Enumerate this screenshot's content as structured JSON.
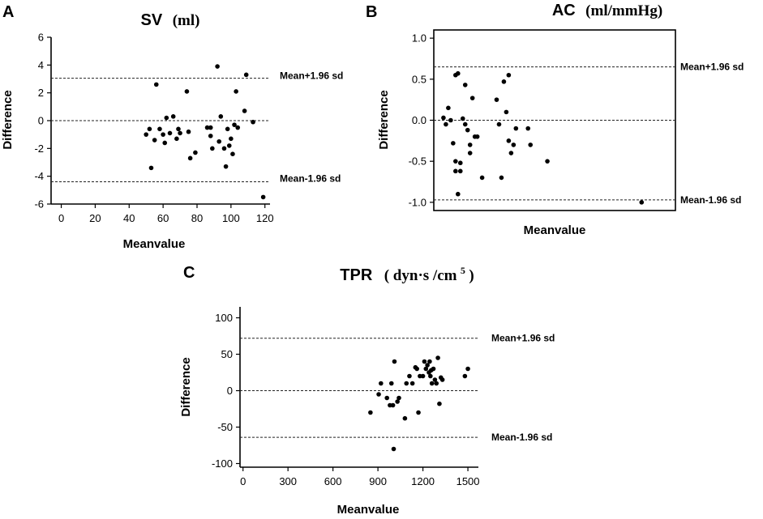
{
  "chart_data": [
    {
      "panel": "A",
      "type": "scatter",
      "title": "SV",
      "title_unit": "(ml)",
      "xlabel": "Meanvalue",
      "ylabel": "Difference",
      "xlim": [
        -6,
        123
      ],
      "ylim": [
        -6,
        6
      ],
      "xticks": [
        0,
        20,
        40,
        60,
        80,
        100,
        120
      ],
      "xtick_labels": [
        "0",
        "20",
        "40",
        "60",
        "80",
        "100",
        "120"
      ],
      "yticks": [
        -6,
        -4,
        -2,
        0,
        2,
        4,
        6
      ],
      "ytick_labels": [
        "-6",
        "-4",
        "-2",
        "0",
        "2",
        "4",
        "6"
      ],
      "frame": "open",
      "ref_lines": [
        {
          "label": "Mean+1.96 sd",
          "y": 3.05
        },
        {
          "label": "",
          "y": 0
        },
        {
          "label": "Mean-1.96 sd",
          "y": -4.4
        }
      ],
      "points": [
        [
          50,
          -1.0
        ],
        [
          52,
          -0.6
        ],
        [
          53,
          -3.4
        ],
        [
          55,
          -1.4
        ],
        [
          56,
          2.6
        ],
        [
          58,
          -0.6
        ],
        [
          60,
          -1.0
        ],
        [
          61,
          -1.6
        ],
        [
          62,
          0.2
        ],
        [
          64,
          -0.9
        ],
        [
          66,
          0.3
        ],
        [
          68,
          -1.3
        ],
        [
          69,
          -0.6
        ],
        [
          70,
          -0.9
        ],
        [
          74,
          2.1
        ],
        [
          75,
          -0.8
        ],
        [
          76,
          -2.7
        ],
        [
          79,
          -2.3
        ],
        [
          86,
          -0.5
        ],
        [
          88,
          -1.1
        ],
        [
          88,
          -0.5
        ],
        [
          89,
          -2.0
        ],
        [
          92,
          3.9
        ],
        [
          93,
          -1.5
        ],
        [
          94,
          0.3
        ],
        [
          96,
          -2.0
        ],
        [
          97,
          -3.3
        ],
        [
          98,
          -0.6
        ],
        [
          99,
          -1.8
        ],
        [
          100,
          -1.3
        ],
        [
          101,
          -2.4
        ],
        [
          102,
          -0.3
        ],
        [
          103,
          2.1
        ],
        [
          104,
          -0.5
        ],
        [
          108,
          0.7
        ],
        [
          109,
          3.3
        ],
        [
          113,
          -0.1
        ],
        [
          119,
          -5.5
        ]
      ]
    },
    {
      "panel": "B",
      "type": "scatter",
      "title": "AC",
      "title_unit": "(ml/mmHg)",
      "xlabel": "Meanvalue",
      "ylabel": "Difference",
      "xlim": [
        0,
        100
      ],
      "ylim": [
        -1.1,
        1.1
      ],
      "xticks": [],
      "xtick_labels": [],
      "yticks": [
        -1.0,
        -0.5,
        0.0,
        0.5,
        1.0
      ],
      "ytick_labels": [
        "-1.0",
        "-0.5",
        "0.0",
        "0.5",
        "1.0"
      ],
      "frame": "box",
      "ref_lines": [
        {
          "label": "Mean+1.96 sd",
          "y": 0.65
        },
        {
          "label": "",
          "y": 0
        },
        {
          "label": "Mean-1.96 sd",
          "y": -0.97
        }
      ],
      "points": [
        [
          4,
          0.03
        ],
        [
          5,
          -0.05
        ],
        [
          6,
          0.15
        ],
        [
          7,
          0.0
        ],
        [
          8,
          -0.28
        ],
        [
          9,
          0.55
        ],
        [
          9,
          -0.62
        ],
        [
          9,
          -0.5
        ],
        [
          10,
          0.57
        ],
        [
          10,
          -0.9
        ],
        [
          11,
          -0.62
        ],
        [
          11,
          -0.52
        ],
        [
          12,
          0.02
        ],
        [
          13,
          0.43
        ],
        [
          13,
          -0.05
        ],
        [
          14,
          -0.12
        ],
        [
          15,
          -0.4
        ],
        [
          15,
          -0.3
        ],
        [
          16,
          0.27
        ],
        [
          17,
          -0.2
        ],
        [
          18,
          -0.2
        ],
        [
          20,
          -0.7
        ],
        [
          26,
          0.25
        ],
        [
          27,
          -0.05
        ],
        [
          28,
          -0.7
        ],
        [
          29,
          0.47
        ],
        [
          30,
          0.1
        ],
        [
          31,
          -0.25
        ],
        [
          31,
          0.55
        ],
        [
          32,
          -0.4
        ],
        [
          33,
          -0.3
        ],
        [
          34,
          -0.1
        ],
        [
          39,
          -0.1
        ],
        [
          40,
          -0.3
        ],
        [
          47,
          -0.5
        ],
        [
          86,
          -1.0
        ]
      ]
    },
    {
      "panel": "C",
      "type": "scatter",
      "title": "TPR",
      "title_unit": "( dyn·s /cm",
      "title_sup": "5",
      "title_close": ")",
      "xlabel": "Meanvalue",
      "ylabel": "Difference",
      "xlim": [
        -20,
        1570
      ],
      "ylim": [
        -105,
        115
      ],
      "xticks": [
        0,
        300,
        600,
        900,
        1200,
        1500
      ],
      "xtick_labels": [
        "0",
        "300",
        "600",
        "900",
        "1200",
        "1500"
      ],
      "yticks": [
        -100,
        -50,
        0,
        50,
        100
      ],
      "ytick_labels": [
        "-100",
        "-50",
        "0",
        "50",
        "100"
      ],
      "frame": "open",
      "ref_lines": [
        {
          "label": "Mean+1.96 sd",
          "y": 72
        },
        {
          "label": "",
          "y": 0
        },
        {
          "label": "Mean-1.96 sd",
          "y": -64
        }
      ],
      "points": [
        [
          850,
          -30
        ],
        [
          905,
          -5
        ],
        [
          920,
          10
        ],
        [
          960,
          -10
        ],
        [
          980,
          -20
        ],
        [
          990,
          10
        ],
        [
          1000,
          -20
        ],
        [
          1005,
          -80
        ],
        [
          1010,
          40
        ],
        [
          1030,
          -15
        ],
        [
          1040,
          -10
        ],
        [
          1080,
          -38
        ],
        [
          1090,
          10
        ],
        [
          1110,
          20
        ],
        [
          1130,
          10
        ],
        [
          1150,
          32
        ],
        [
          1160,
          30
        ],
        [
          1170,
          -30
        ],
        [
          1180,
          20
        ],
        [
          1200,
          20
        ],
        [
          1210,
          40
        ],
        [
          1220,
          30
        ],
        [
          1230,
          35
        ],
        [
          1240,
          25
        ],
        [
          1245,
          40
        ],
        [
          1250,
          20
        ],
        [
          1255,
          28
        ],
        [
          1260,
          10
        ],
        [
          1270,
          30
        ],
        [
          1280,
          15
        ],
        [
          1290,
          10
        ],
        [
          1300,
          45
        ],
        [
          1310,
          -18
        ],
        [
          1320,
          18
        ],
        [
          1330,
          15
        ],
        [
          1480,
          20
        ],
        [
          1500,
          30
        ]
      ]
    }
  ]
}
